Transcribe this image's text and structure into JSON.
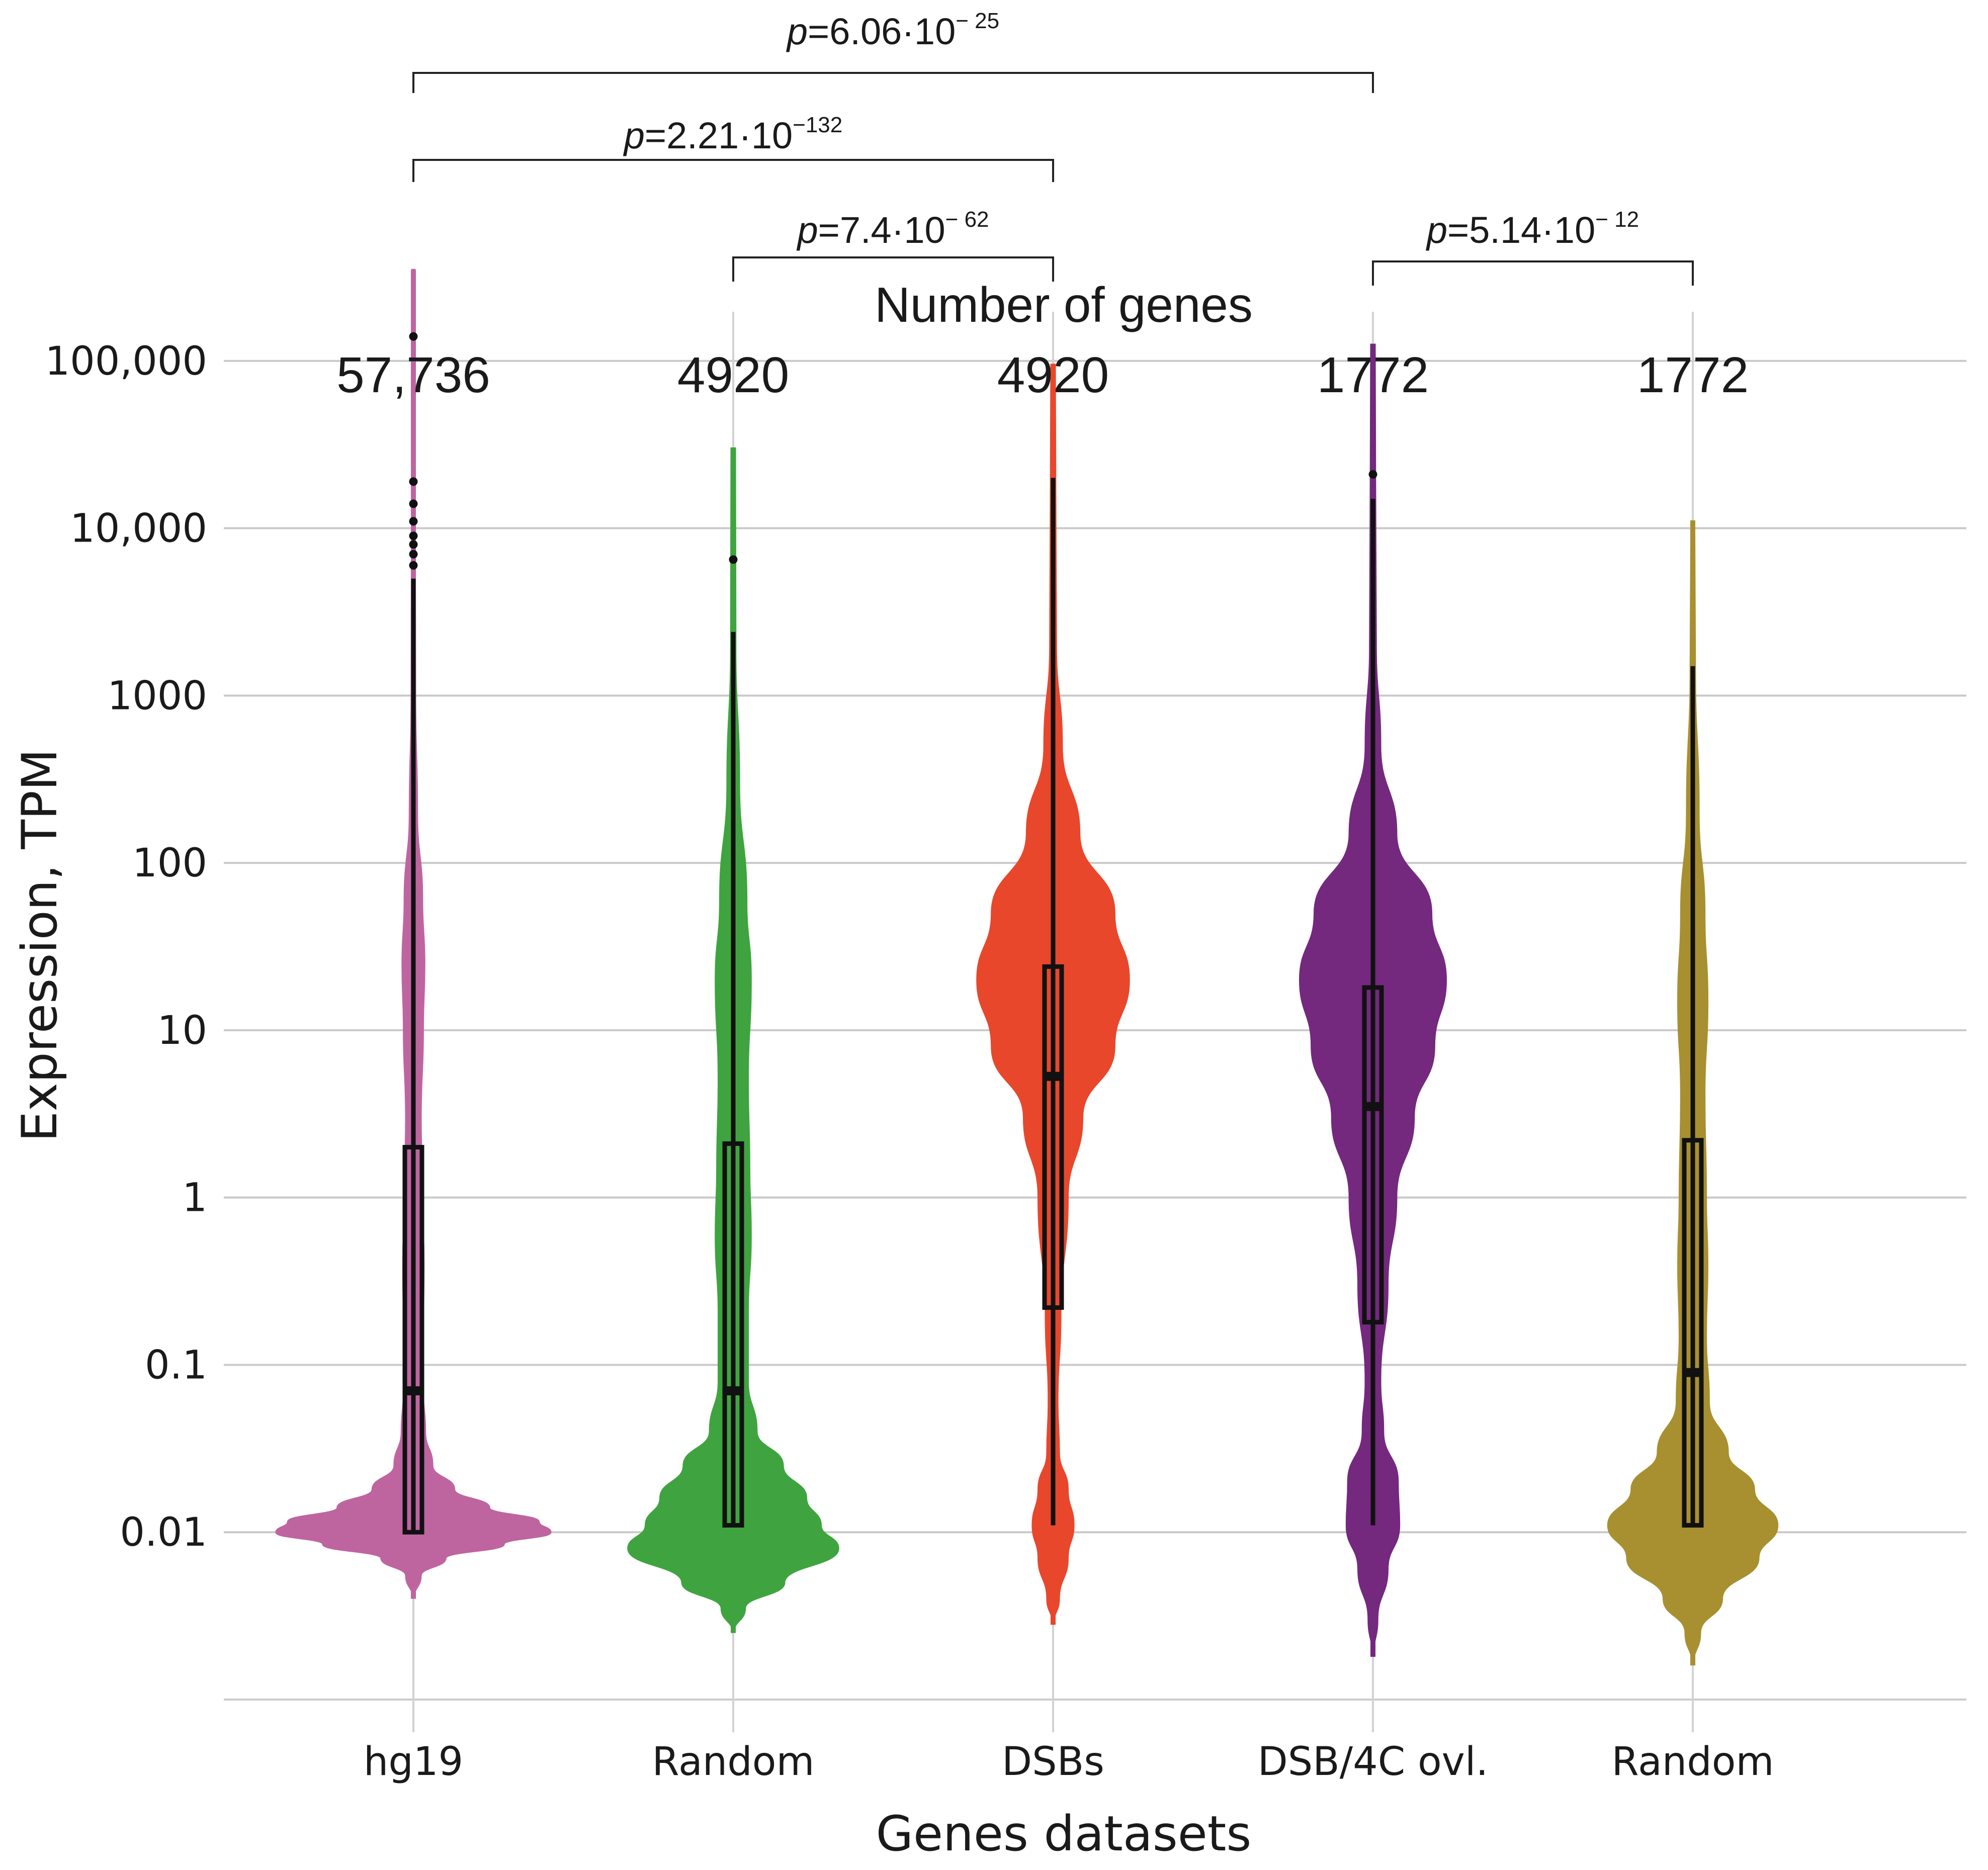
{
  "chart_data": {
    "type": "violin",
    "x_label": "Genes datasets",
    "y_label": "Expression, TPM",
    "y_scale": "log10",
    "y_range": [
      0.001,
      1000000
    ],
    "y_ticks": [
      {
        "value": 0.01,
        "label": "0.01"
      },
      {
        "value": 0.1,
        "label": "0.1"
      },
      {
        "value": 1,
        "label": "1"
      },
      {
        "value": 10,
        "label": "10"
      },
      {
        "value": 100,
        "label": "100"
      },
      {
        "value": 1000,
        "label": "1000"
      },
      {
        "value": 10000,
        "label": "10,000"
      },
      {
        "value": 100000,
        "label": "100,000"
      }
    ],
    "grid": true,
    "counts_title": "Number of genes",
    "groups": [
      {
        "label": "hg19",
        "count_label": "57,736",
        "color": "#BE65A0",
        "box": {
          "q1": 0.01,
          "median": 0.07,
          "q3": 2,
          "whisker_low": 0.01,
          "whisker_high": 5000
        },
        "violin_max": 350000,
        "violin_min": 0.004,
        "outliers": [
          140000,
          19000,
          14000,
          11000,
          9000,
          8000,
          7000,
          6000
        ],
        "density": [
          [
            0.004,
            0.0
          ],
          [
            0.0055,
            0.05
          ],
          [
            0.007,
            0.22
          ],
          [
            0.0085,
            0.62
          ],
          [
            0.01,
            0.94
          ],
          [
            0.0115,
            0.86
          ],
          [
            0.014,
            0.52
          ],
          [
            0.018,
            0.28
          ],
          [
            0.025,
            0.13
          ],
          [
            0.04,
            0.08
          ],
          [
            0.07,
            0.065
          ],
          [
            0.15,
            0.065
          ],
          [
            0.4,
            0.07
          ],
          [
            1,
            0.06
          ],
          [
            3,
            0.05
          ],
          [
            10,
            0.065
          ],
          [
            25,
            0.075
          ],
          [
            60,
            0.06
          ],
          [
            200,
            0.025
          ],
          [
            1000,
            0.012
          ],
          [
            10000,
            0.01
          ],
          [
            350000,
            0.008
          ]
        ]
      },
      {
        "label": "Random",
        "count_label": "4920",
        "color": "#3FA43F",
        "box": {
          "q1": 0.011,
          "median": 0.07,
          "q3": 2.1,
          "whisker_low": 0.011,
          "whisker_high": 2400
        },
        "violin_max": 30000,
        "violin_min": 0.0025,
        "outliers": [
          6500
        ],
        "density": [
          [
            0.0025,
            0.0
          ],
          [
            0.0035,
            0.08
          ],
          [
            0.005,
            0.35
          ],
          [
            0.008,
            0.72
          ],
          [
            0.011,
            0.6
          ],
          [
            0.016,
            0.5
          ],
          [
            0.025,
            0.34
          ],
          [
            0.04,
            0.16
          ],
          [
            0.08,
            0.1
          ],
          [
            0.2,
            0.1
          ],
          [
            0.6,
            0.12
          ],
          [
            1.5,
            0.11
          ],
          [
            5,
            0.1
          ],
          [
            20,
            0.12
          ],
          [
            60,
            0.09
          ],
          [
            300,
            0.04
          ],
          [
            2000,
            0.015
          ],
          [
            30000,
            0.012
          ]
        ]
      },
      {
        "label": "DSBs",
        "count_label": "4920",
        "color": "#E8472C",
        "box": {
          "q1": 0.22,
          "median": 5.3,
          "q3": 24,
          "whisker_low": 0.011,
          "whisker_high": 20000
        },
        "violin_max": 95000,
        "violin_min": 0.0028,
        "outliers": [],
        "density": [
          [
            0.0028,
            0.0
          ],
          [
            0.004,
            0.04
          ],
          [
            0.007,
            0.1
          ],
          [
            0.011,
            0.14
          ],
          [
            0.018,
            0.1
          ],
          [
            0.03,
            0.04
          ],
          [
            0.06,
            0.03
          ],
          [
            0.2,
            0.05
          ],
          [
            1,
            0.1
          ],
          [
            3,
            0.2
          ],
          [
            8,
            0.42
          ],
          [
            20,
            0.52
          ],
          [
            50,
            0.42
          ],
          [
            150,
            0.18
          ],
          [
            500,
            0.06
          ],
          [
            2000,
            0.02
          ],
          [
            20000,
            0.015
          ],
          [
            95000,
            0.012
          ]
        ]
      },
      {
        "label": "DSB/4C ovl.",
        "count_label": "1772",
        "color": "#74287E",
        "box": {
          "q1": 0.18,
          "median": 3.5,
          "q3": 18,
          "whisker_low": 0.011,
          "whisker_high": 15000
        },
        "violin_max": 125000,
        "violin_min": 0.0018,
        "outliers": [
          21000
        ],
        "density": [
          [
            0.0018,
            0.0
          ],
          [
            0.003,
            0.03
          ],
          [
            0.006,
            0.1
          ],
          [
            0.011,
            0.18
          ],
          [
            0.02,
            0.17
          ],
          [
            0.04,
            0.07
          ],
          [
            0.08,
            0.05
          ],
          [
            0.3,
            0.1
          ],
          [
            1,
            0.16
          ],
          [
            3,
            0.28
          ],
          [
            8,
            0.42
          ],
          [
            20,
            0.5
          ],
          [
            50,
            0.4
          ],
          [
            150,
            0.16
          ],
          [
            500,
            0.05
          ],
          [
            2000,
            0.02
          ],
          [
            20000,
            0.015
          ],
          [
            125000,
            0.012
          ]
        ]
      },
      {
        "label": "Random",
        "count_label": "1772",
        "color": "#A89030",
        "box": {
          "q1": 0.011,
          "median": 0.09,
          "q3": 2.2,
          "whisker_low": 0.011,
          "whisker_high": 1500
        },
        "violin_max": 11000,
        "violin_min": 0.0016,
        "outliers": [],
        "density": [
          [
            0.0016,
            0.0
          ],
          [
            0.0025,
            0.05
          ],
          [
            0.004,
            0.2
          ],
          [
            0.007,
            0.45
          ],
          [
            0.011,
            0.58
          ],
          [
            0.018,
            0.42
          ],
          [
            0.03,
            0.24
          ],
          [
            0.06,
            0.11
          ],
          [
            0.15,
            0.09
          ],
          [
            0.4,
            0.1
          ],
          [
            1,
            0.09
          ],
          [
            4,
            0.08
          ],
          [
            15,
            0.1
          ],
          [
            50,
            0.08
          ],
          [
            200,
            0.04
          ],
          [
            1500,
            0.015
          ],
          [
            11000,
            0.01
          ]
        ]
      }
    ],
    "comparisons": [
      {
        "from": 0,
        "to": 3,
        "p_base": "6.06",
        "p_exp": "− 25"
      },
      {
        "from": 0,
        "to": 2,
        "p_base": "2.21",
        "p_exp": "−132"
      },
      {
        "from": 1,
        "to": 2,
        "p_base": "7.4",
        "p_exp": "− 62"
      },
      {
        "from": 3,
        "to": 4,
        "p_base": "5.14",
        "p_exp": "− 12"
      }
    ]
  }
}
